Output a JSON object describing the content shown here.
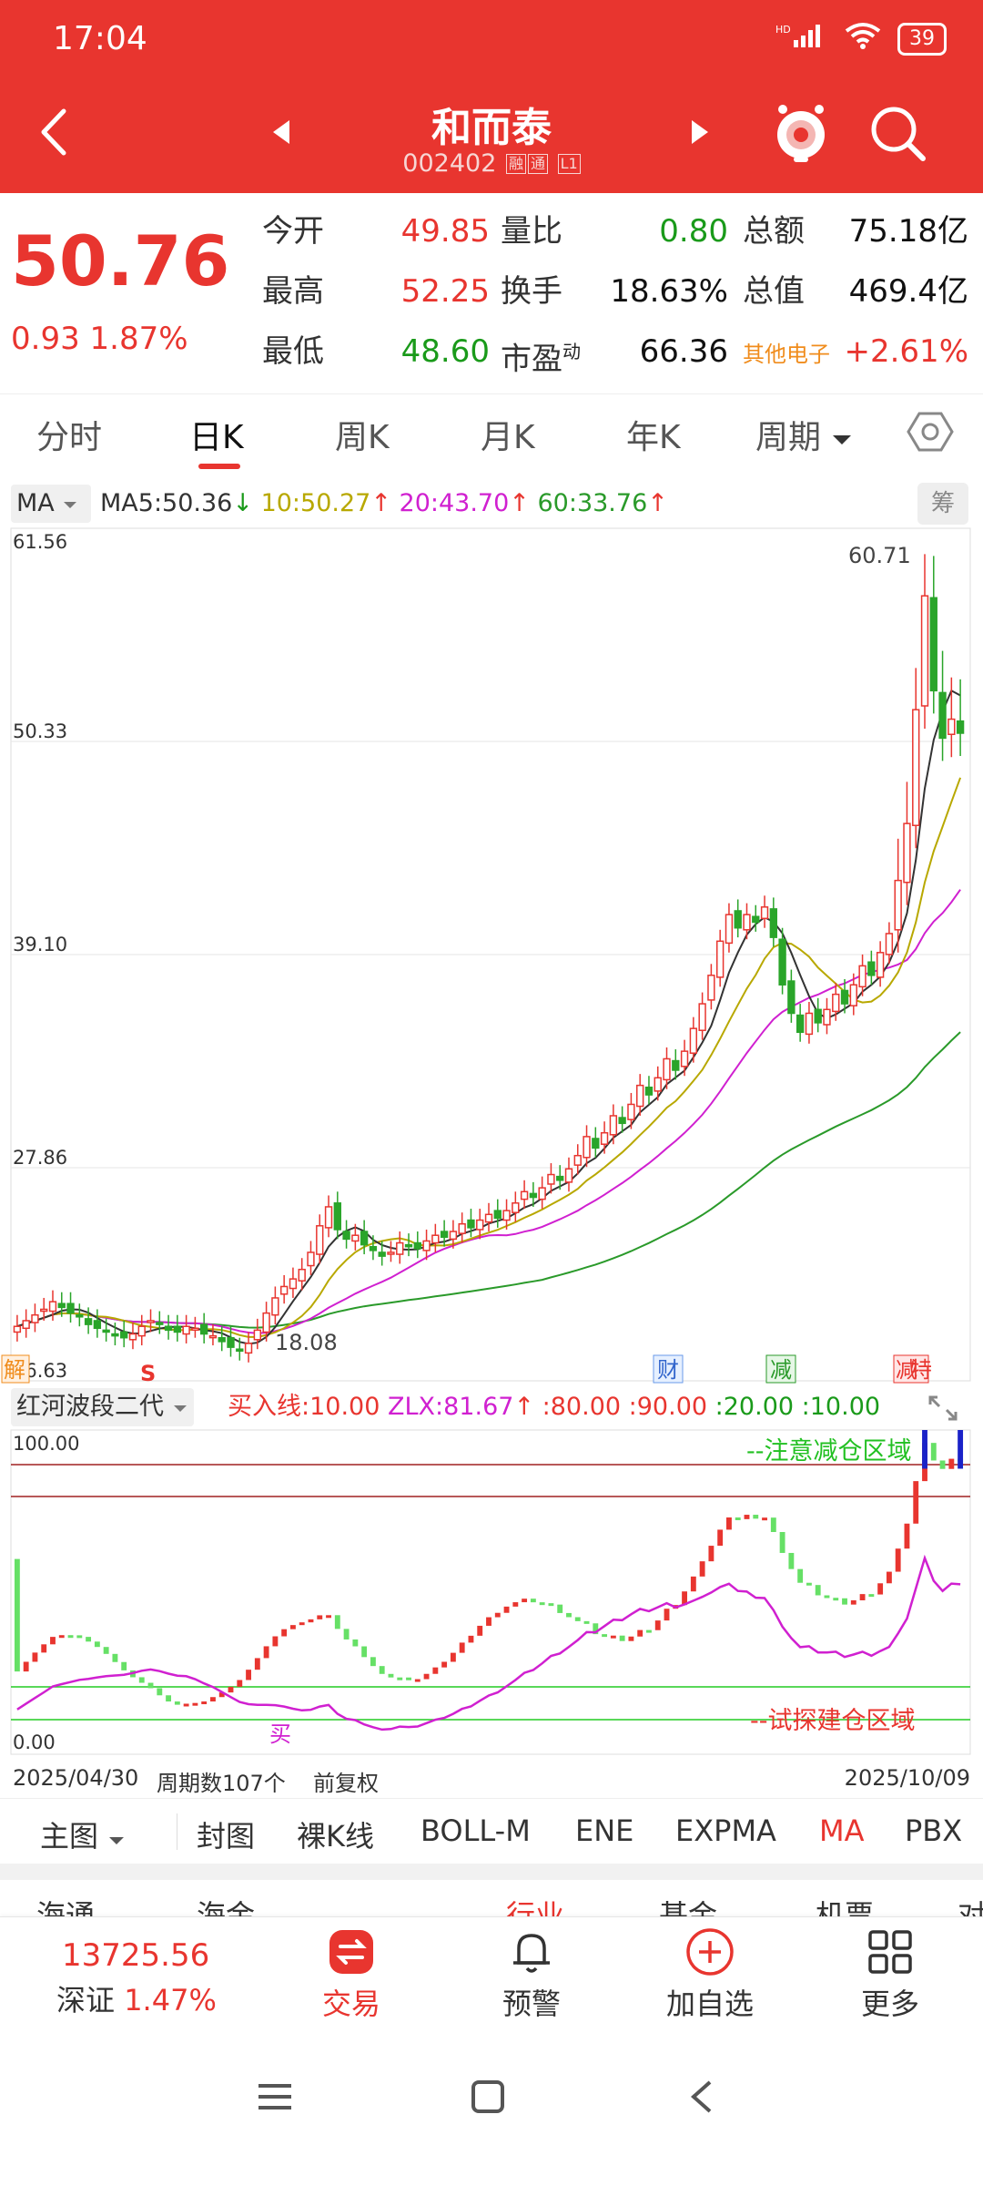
{
  "status": {
    "time": "17:04",
    "signal": "HD",
    "battery": "39"
  },
  "header": {
    "name": "和而泰",
    "code": "002402",
    "tag1": "融",
    "tag2": "通",
    "tag3": "L1"
  },
  "quote": {
    "price": "50.76",
    "change": "0.93",
    "change_pct": "1.87%",
    "items": [
      {
        "label": "今开",
        "value": "49.85"
      },
      {
        "label": "量比",
        "value": "0.80"
      },
      {
        "label": "总额",
        "value": "75.18亿"
      },
      {
        "label": "最高",
        "value": "52.25"
      },
      {
        "label": "换手",
        "value": "18.63%"
      },
      {
        "label": "总值",
        "value": "469.4亿"
      },
      {
        "label": "最低",
        "value": "48.60"
      },
      {
        "label": "市盈",
        "sup": "动",
        "value": "66.36"
      },
      {
        "label": "其他电子",
        "value": "+2.61%"
      }
    ]
  },
  "tabs": [
    "分时",
    "日K",
    "周K",
    "月K",
    "年K",
    "周期"
  ],
  "ma": {
    "select": "MA",
    "ma5": "MA5:50.36",
    "ma10": "10:50.27",
    "ma20": "20:43.70",
    "ma60": "60:33.76",
    "chip": "筹",
    "colors": {
      "ma5": "#333333",
      "ma10": "#b8a800",
      "ma20": "#d020d0",
      "ma60": "#2a9a2a"
    }
  },
  "kline": {
    "y_labels": [
      "61.56",
      "50.33",
      "39.10",
      "27.86",
      "16.63"
    ],
    "high_label": "60.71",
    "low_label": "18.08",
    "markers": [
      "解",
      "S",
      "财",
      "减",
      "减",
      "特"
    ]
  },
  "indicator": {
    "select": "红河波段二代",
    "buy_label": "买入线:10.00",
    "zlx": "ZLX:81.67",
    "l80": ":80.00",
    "l90": ":90.00",
    "l20": ":20.00",
    "l10": ":10.00",
    "y_top": "100.00",
    "y_bottom": "0.00",
    "warn_text": "--注意减仓区域",
    "build_text": "--试探建仓区域",
    "buy_marker": "买"
  },
  "footer": {
    "start": "2025/04/30",
    "count": "周期数107个",
    "adj": "前复权",
    "end": "2025/10/09"
  },
  "ind_tabs": [
    "主图",
    "封图",
    "裸K线",
    "BOLL-M",
    "ENE",
    "EXPMA",
    "MA",
    "PBX"
  ],
  "peek": [
    "海通",
    "海金",
    "",
    "行业",
    "基金",
    "机票",
    "对"
  ],
  "bottom": {
    "index_value": "13725.56",
    "index_name": "深证",
    "index_pct": "1.47%",
    "trade": "交易",
    "alert": "预警",
    "add": "加自选",
    "more": "更多"
  },
  "chart_data": {
    "type": "candlestick",
    "ylim": [
      16.63,
      61.56
    ],
    "x_start": "2025/04/30",
    "x_end": "2025/10/09",
    "periods": 107,
    "close_series": [
      19.5,
      19.8,
      20.1,
      20.4,
      20.8,
      20.5,
      20.2,
      20.0,
      19.6,
      19.4,
      19.2,
      19.0,
      18.9,
      19.1,
      19.5,
      19.8,
      19.6,
      19.3,
      19.2,
      19.5,
      19.4,
      19.1,
      19.0,
      18.7,
      18.4,
      18.2,
      18.6,
      19.3,
      20.2,
      21.0,
      21.6,
      22.0,
      22.5,
      23.4,
      24.8,
      25.8,
      24.6,
      24.1,
      24.3,
      23.8,
      23.5,
      23.2,
      23.4,
      23.9,
      23.7,
      23.6,
      24.0,
      24.3,
      24.2,
      24.5,
      24.9,
      24.7,
      25.1,
      25.4,
      25.2,
      25.6,
      26.0,
      26.6,
      26.3,
      26.8,
      27.5,
      27.2,
      27.8,
      28.5,
      29.5,
      28.9,
      29.7,
      30.6,
      30.2,
      31.2,
      32.2,
      31.7,
      32.6,
      33.6,
      33.0,
      34.0,
      35.2,
      36.5,
      38.0,
      39.8,
      41.2,
      40.5,
      41.2,
      40.8,
      41.6,
      40.0,
      37.5,
      36.0,
      35.0,
      36.0,
      35.5,
      36.2,
      37.0,
      36.5,
      37.5,
      38.5,
      38.0,
      39.2,
      40.2,
      43.0,
      46.0,
      52.0,
      58.0,
      53.0,
      50.5,
      51.5,
      50.76
    ]
  }
}
